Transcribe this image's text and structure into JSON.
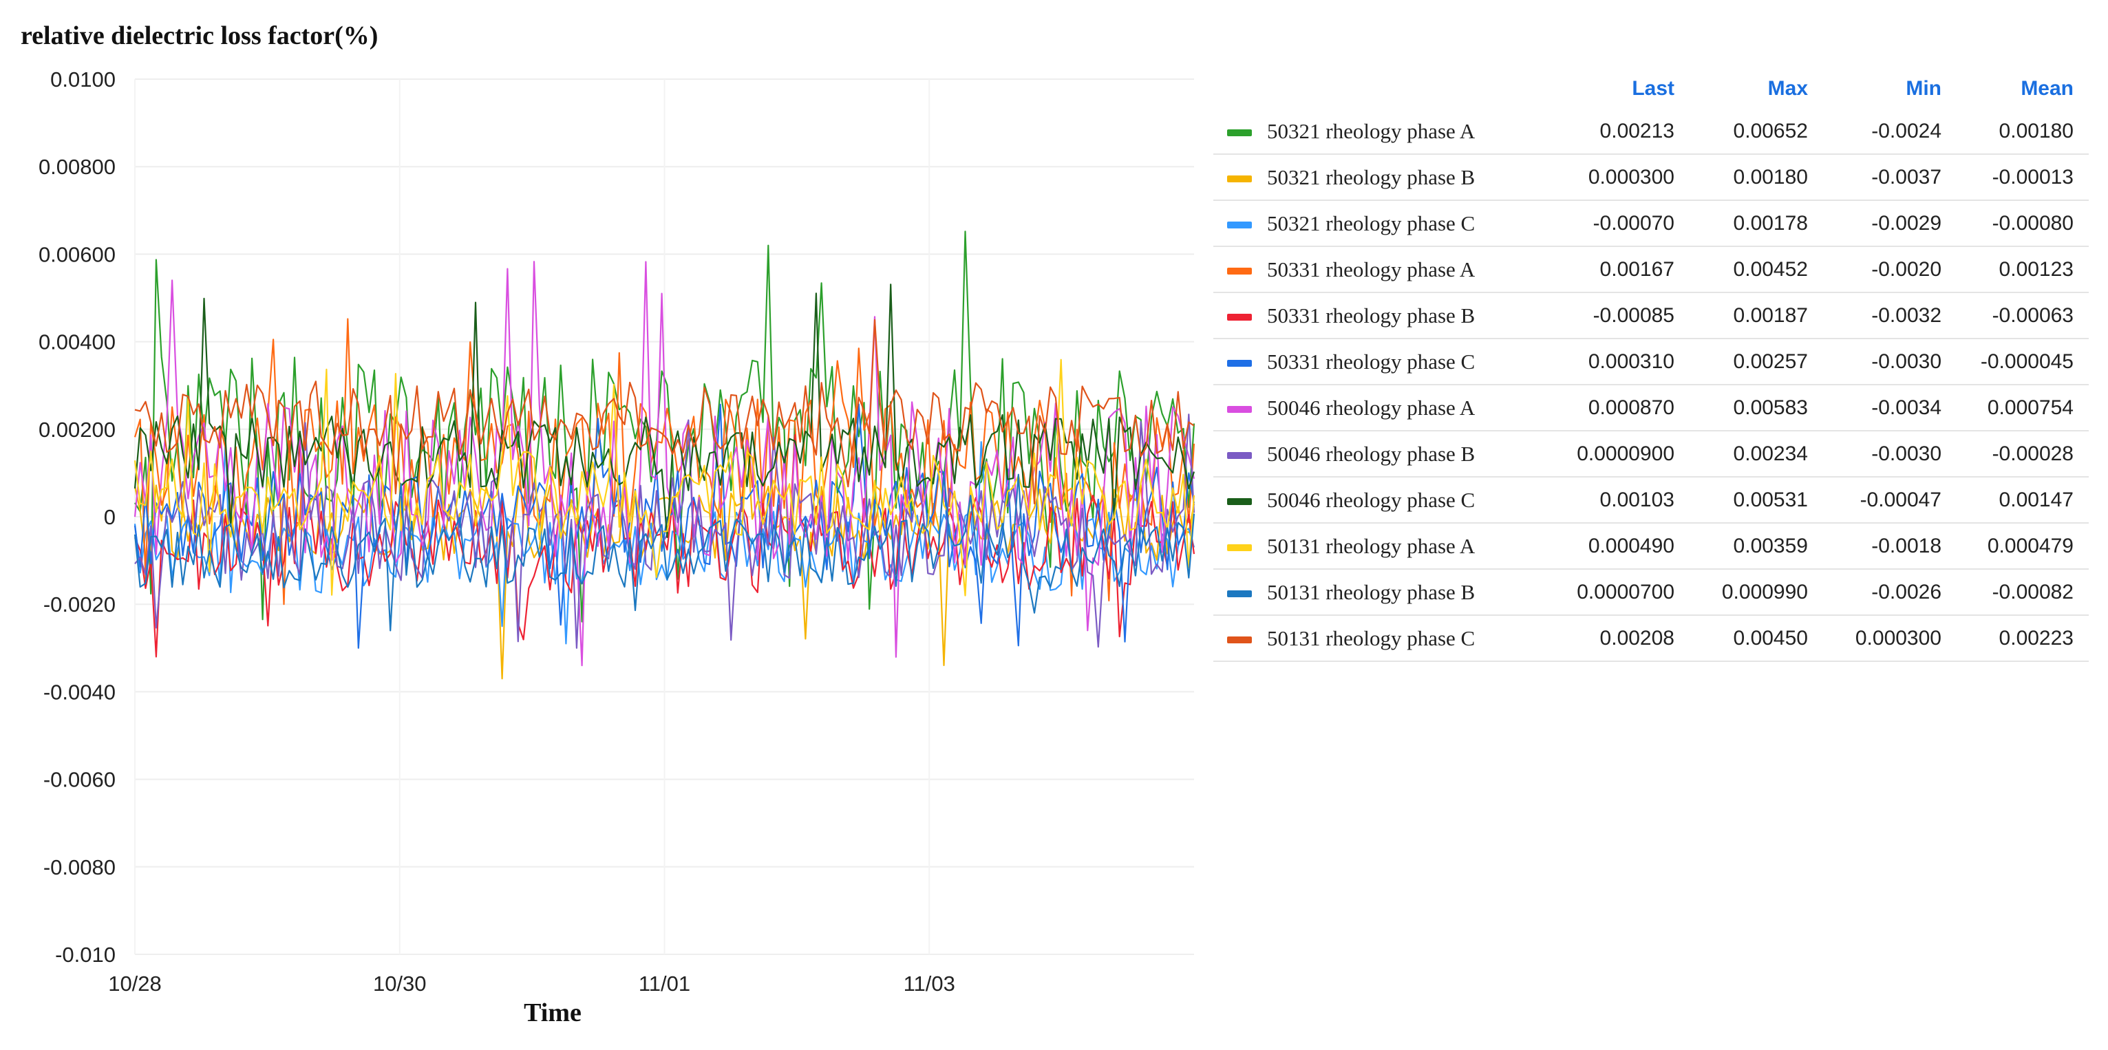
{
  "chart_data": {
    "type": "line",
    "title": "relative dielectric loss factor(%)",
    "xlabel": "Time",
    "ylabel": "",
    "ylim": [
      -0.01,
      0.01
    ],
    "yticks": [
      "0.0100",
      "0.00800",
      "0.00600",
      "0.00400",
      "0.00200",
      "0",
      "-0.0020",
      "-0.0040",
      "-0.0060",
      "-0.0080",
      "-0.010"
    ],
    "ytick_values": [
      0.01,
      0.008,
      0.006,
      0.004,
      0.002,
      0,
      -0.002,
      -0.004,
      -0.006,
      -0.008,
      -0.01
    ],
    "xticks": [
      "10/28",
      "10/30",
      "11/01",
      "11/03"
    ],
    "xtick_values": [
      0,
      2,
      4,
      6
    ],
    "xlim": [
      0,
      8
    ],
    "grid": true,
    "legend_placement": "right",
    "legend_columns": [
      "Last",
      "Max",
      "Min",
      "Mean"
    ],
    "series": [
      {
        "name": "50321 rheology phase A",
        "color": "#2ca02c",
        "last": "0.00213",
        "max": "0.00652",
        "min": "-0.0024",
        "mean": "0.00180",
        "last_v": 0.00213,
        "max_v": 0.00652,
        "min_v": -0.0024,
        "mean_v": 0.0018
      },
      {
        "name": "50321 rheology phase B",
        "color": "#f5b400",
        "last": "0.000300",
        "max": "0.00180",
        "min": "-0.0037",
        "mean": "-0.00013",
        "last_v": 0.0003,
        "max_v": 0.0018,
        "min_v": -0.0037,
        "mean_v": -0.00013
      },
      {
        "name": "50321 rheology phase C",
        "color": "#3399ff",
        "last": "-0.00070",
        "max": "0.00178",
        "min": "-0.0029",
        "mean": "-0.00080",
        "last_v": -0.0007,
        "max_v": 0.00178,
        "min_v": -0.0029,
        "mean_v": -0.0008
      },
      {
        "name": "50331 rheology phase A",
        "color": "#ff6a13",
        "last": "0.00167",
        "max": "0.00452",
        "min": "-0.0020",
        "mean": "0.00123",
        "last_v": 0.00167,
        "max_v": 0.00452,
        "min_v": -0.002,
        "mean_v": 0.00123
      },
      {
        "name": "50331 rheology phase B",
        "color": "#ee2233",
        "last": "-0.00085",
        "max": "0.00187",
        "min": "-0.0032",
        "mean": "-0.00063",
        "last_v": -0.00085,
        "max_v": 0.00187,
        "min_v": -0.0032,
        "mean_v": -0.00063
      },
      {
        "name": "50331 rheology phase C",
        "color": "#1f6fe6",
        "last": "0.000310",
        "max": "0.00257",
        "min": "-0.0030",
        "mean": "-0.000045",
        "last_v": 0.00031,
        "max_v": 0.00257,
        "min_v": -0.003,
        "mean_v": -4.5e-05
      },
      {
        "name": "50046 rheology phase A",
        "color": "#d94ee0",
        "last": "0.000870",
        "max": "0.00583",
        "min": "-0.0034",
        "mean": "0.000754",
        "last_v": 0.00087,
        "max_v": 0.00583,
        "min_v": -0.0034,
        "mean_v": 0.000754
      },
      {
        "name": "50046 rheology phase B",
        "color": "#7b5bc4",
        "last": "0.0000900",
        "max": "0.00234",
        "min": "-0.0030",
        "mean": "-0.00028",
        "last_v": 9e-05,
        "max_v": 0.00234,
        "min_v": -0.003,
        "mean_v": -0.00028
      },
      {
        "name": "50046 rheology phase C",
        "color": "#1a5e1a",
        "last": "0.00103",
        "max": "0.00531",
        "min": "-0.00047",
        "mean": "0.00147",
        "last_v": 0.00103,
        "max_v": 0.00531,
        "min_v": -0.00047,
        "mean_v": 0.00147
      },
      {
        "name": "50131 rheology phase A",
        "color": "#ffd21a",
        "last": "0.000490",
        "max": "0.00359",
        "min": "-0.0018",
        "mean": "0.000479",
        "last_v": 0.00049,
        "max_v": 0.00359,
        "min_v": -0.0018,
        "mean_v": 0.000479
      },
      {
        "name": "50131 rheology phase B",
        "color": "#1c78c0",
        "last": "0.0000700",
        "max": "0.000990",
        "min": "-0.0026",
        "mean": "-0.00082",
        "last_v": 7e-05,
        "max_v": 0.00099,
        "min_v": -0.0026,
        "mean_v": -0.00082
      },
      {
        "name": "50131 rheology phase C",
        "color": "#e0541a",
        "last": "0.00208",
        "max": "0.00450",
        "min": "0.000300",
        "mean": "0.00223",
        "last_v": 0.00208,
        "max_v": 0.0045,
        "min_v": 0.0003,
        "mean_v": 0.00223
      }
    ]
  }
}
